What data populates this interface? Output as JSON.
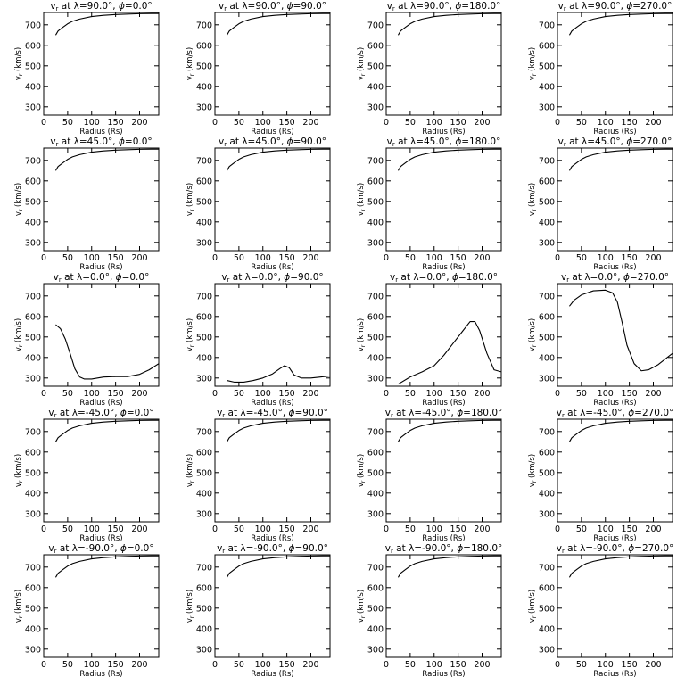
{
  "xlabel": "Radius (Rs)",
  "ylabel": "v",
  "ylabel_sub": "r",
  "ylabel_unit": " (km/s)",
  "title_prefix": "v",
  "title_sub": "r",
  "lambda_symbol": "λ",
  "phi_symbol": "ϕ",
  "xlim": [
    0,
    240
  ],
  "ylim": [
    260,
    760
  ],
  "xticks": [
    "0",
    "50",
    "100",
    "150",
    "200"
  ],
  "yticks": [
    "300",
    "400",
    "500",
    "600",
    "700"
  ],
  "chart_data": [
    {
      "type": "line",
      "lambda": "90.0",
      "phi": "0.0",
      "x": [
        25,
        30,
        40,
        50,
        60,
        75,
        100,
        125,
        150,
        175,
        200,
        225,
        240
      ],
      "y": [
        650,
        670,
        688,
        705,
        717,
        728,
        740,
        746,
        750,
        752,
        754,
        755,
        755
      ]
    },
    {
      "type": "line",
      "lambda": "90.0",
      "phi": "90.0",
      "x": [
        25,
        30,
        40,
        50,
        60,
        75,
        100,
        125,
        150,
        175,
        200,
        225,
        240
      ],
      "y": [
        650,
        670,
        688,
        705,
        717,
        728,
        740,
        746,
        750,
        752,
        754,
        755,
        755
      ]
    },
    {
      "type": "line",
      "lambda": "90.0",
      "phi": "180.0",
      "x": [
        25,
        30,
        40,
        50,
        60,
        75,
        100,
        125,
        150,
        175,
        200,
        225,
        240
      ],
      "y": [
        650,
        670,
        688,
        705,
        717,
        728,
        740,
        746,
        750,
        752,
        754,
        755,
        755
      ]
    },
    {
      "type": "line",
      "lambda": "90.0",
      "phi": "270.0",
      "x": [
        25,
        30,
        40,
        50,
        60,
        75,
        100,
        125,
        150,
        175,
        200,
        225,
        240
      ],
      "y": [
        650,
        670,
        688,
        705,
        717,
        728,
        740,
        746,
        750,
        752,
        754,
        755,
        755
      ]
    },
    {
      "type": "line",
      "lambda": "45.0",
      "phi": "0.0",
      "x": [
        25,
        30,
        40,
        50,
        60,
        75,
        100,
        125,
        150,
        175,
        200,
        225,
        240
      ],
      "y": [
        650,
        670,
        688,
        705,
        717,
        728,
        740,
        746,
        750,
        752,
        754,
        755,
        755
      ]
    },
    {
      "type": "line",
      "lambda": "45.0",
      "phi": "90.0",
      "x": [
        25,
        30,
        40,
        50,
        60,
        75,
        100,
        125,
        150,
        175,
        200,
        225,
        240
      ],
      "y": [
        650,
        670,
        688,
        705,
        717,
        728,
        740,
        746,
        750,
        752,
        754,
        755,
        755
      ]
    },
    {
      "type": "line",
      "lambda": "45.0",
      "phi": "180.0",
      "x": [
        25,
        30,
        40,
        50,
        60,
        75,
        100,
        125,
        150,
        175,
        200,
        225,
        240
      ],
      "y": [
        650,
        670,
        688,
        705,
        717,
        728,
        740,
        746,
        750,
        752,
        754,
        755,
        755
      ]
    },
    {
      "type": "line",
      "lambda": "45.0",
      "phi": "270.0",
      "x": [
        25,
        30,
        40,
        50,
        60,
        75,
        100,
        125,
        150,
        175,
        200,
        225,
        240
      ],
      "y": [
        650,
        670,
        688,
        705,
        717,
        728,
        740,
        746,
        750,
        752,
        754,
        755,
        755
      ]
    },
    {
      "type": "line",
      "lambda": "0.0",
      "phi": "0.0",
      "x": [
        25,
        35,
        45,
        55,
        65,
        75,
        85,
        100,
        125,
        150,
        175,
        200,
        220,
        240
      ],
      "y": [
        560,
        540,
        490,
        420,
        345,
        305,
        295,
        295,
        305,
        307,
        307,
        318,
        340,
        370
      ]
    },
    {
      "type": "line",
      "lambda": "0.0",
      "phi": "90.0",
      "x": [
        25,
        40,
        60,
        80,
        100,
        120,
        135,
        145,
        155,
        165,
        180,
        200,
        220,
        240
      ],
      "y": [
        288,
        280,
        280,
        288,
        300,
        320,
        345,
        360,
        350,
        315,
        300,
        300,
        305,
        310
      ]
    },
    {
      "type": "line",
      "lambda": "0.0",
      "phi": "180.0",
      "x": [
        25,
        50,
        75,
        100,
        120,
        140,
        160,
        175,
        185,
        195,
        210,
        225,
        240
      ],
      "y": [
        270,
        305,
        330,
        360,
        410,
        470,
        530,
        575,
        575,
        530,
        420,
        340,
        330
      ]
    },
    {
      "type": "line",
      "lambda": "0.0",
      "phi": "270.0",
      "x": [
        25,
        35,
        50,
        75,
        100,
        115,
        125,
        135,
        145,
        160,
        175,
        190,
        210,
        240
      ],
      "y": [
        650,
        680,
        705,
        725,
        728,
        715,
        670,
        570,
        460,
        370,
        335,
        340,
        365,
        420
      ]
    },
    {
      "type": "line",
      "lambda": "-45.0",
      "phi": "0.0",
      "x": [
        25,
        30,
        40,
        50,
        60,
        75,
        100,
        125,
        150,
        175,
        200,
        225,
        240
      ],
      "y": [
        650,
        670,
        688,
        705,
        717,
        728,
        740,
        746,
        750,
        752,
        754,
        755,
        755
      ]
    },
    {
      "type": "line",
      "lambda": "-45.0",
      "phi": "90.0",
      "x": [
        25,
        30,
        40,
        50,
        60,
        75,
        100,
        125,
        150,
        175,
        200,
        225,
        240
      ],
      "y": [
        650,
        670,
        688,
        705,
        717,
        728,
        740,
        746,
        750,
        752,
        754,
        755,
        755
      ]
    },
    {
      "type": "line",
      "lambda": "-45.0",
      "phi": "180.0",
      "x": [
        25,
        30,
        40,
        50,
        60,
        75,
        100,
        125,
        150,
        175,
        200,
        225,
        240
      ],
      "y": [
        650,
        670,
        688,
        705,
        717,
        728,
        740,
        746,
        750,
        752,
        754,
        755,
        755
      ]
    },
    {
      "type": "line",
      "lambda": "-45.0",
      "phi": "270.0",
      "x": [
        25,
        30,
        40,
        50,
        60,
        75,
        100,
        125,
        150,
        175,
        200,
        225,
        240
      ],
      "y": [
        650,
        670,
        688,
        705,
        717,
        728,
        740,
        746,
        750,
        752,
        754,
        755,
        755
      ]
    },
    {
      "type": "line",
      "lambda": "-90.0",
      "phi": "0.0",
      "x": [
        25,
        30,
        40,
        50,
        60,
        75,
        100,
        125,
        150,
        175,
        200,
        225,
        240
      ],
      "y": [
        650,
        670,
        688,
        705,
        717,
        728,
        740,
        746,
        750,
        752,
        754,
        755,
        755
      ]
    },
    {
      "type": "line",
      "lambda": "-90.0",
      "phi": "90.0",
      "x": [
        25,
        30,
        40,
        50,
        60,
        75,
        100,
        125,
        150,
        175,
        200,
        225,
        240
      ],
      "y": [
        650,
        670,
        688,
        705,
        717,
        728,
        740,
        746,
        750,
        752,
        754,
        755,
        755
      ]
    },
    {
      "type": "line",
      "lambda": "-90.0",
      "phi": "180.0",
      "x": [
        25,
        30,
        40,
        50,
        60,
        75,
        100,
        125,
        150,
        175,
        200,
        225,
        240
      ],
      "y": [
        650,
        670,
        688,
        705,
        717,
        728,
        740,
        746,
        750,
        752,
        754,
        755,
        755
      ]
    },
    {
      "type": "line",
      "lambda": "-90.0",
      "phi": "270.0",
      "x": [
        25,
        30,
        40,
        50,
        60,
        75,
        100,
        125,
        150,
        175,
        200,
        225,
        240
      ],
      "y": [
        650,
        670,
        688,
        705,
        717,
        728,
        740,
        746,
        750,
        752,
        754,
        755,
        755
      ]
    }
  ]
}
